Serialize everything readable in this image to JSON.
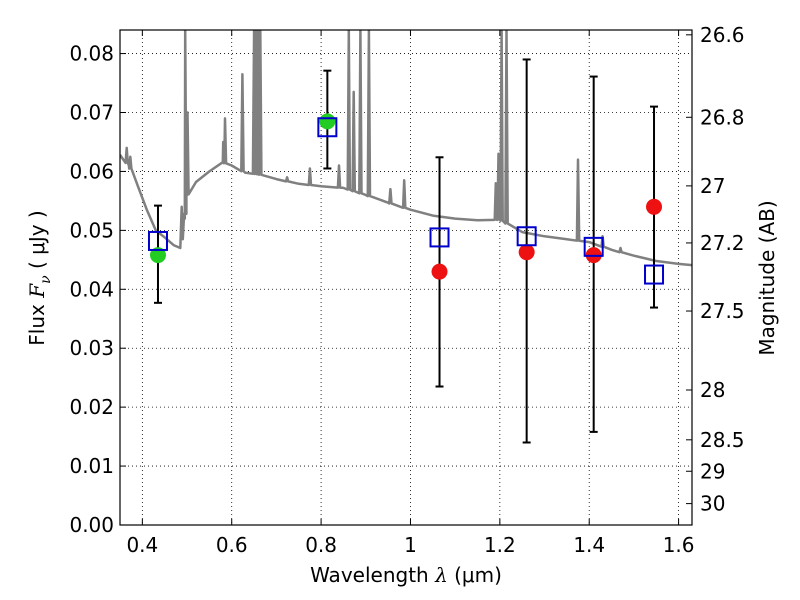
{
  "chart_data": {
    "type": "scatter",
    "title": "",
    "xlabel": {
      "prefix": "Wavelength  ",
      "symbol": "λ",
      "units": " (μm)"
    },
    "ylabel": {
      "prefix": "Flux  ",
      "symbol": "F",
      "sub": "ν",
      "units": "  ( μJy )"
    },
    "y2label": "Magnitude (AB)",
    "xlim": [
      0.35,
      1.63
    ],
    "ylim": [
      0.0,
      0.084
    ],
    "grid": true,
    "x_ticks": [
      0.4,
      0.6,
      0.8,
      1.0,
      1.2,
      1.4,
      1.6
    ],
    "x_tick_labels": [
      "0.4",
      "0.6",
      "0.8",
      "1",
      "1.2",
      "1.4",
      "1.6"
    ],
    "y_ticks": [
      0.0,
      0.01,
      0.02,
      0.03,
      0.04,
      0.05,
      0.06,
      0.07,
      0.08
    ],
    "y_tick_labels": [
      "0.00",
      "0.01",
      "0.02",
      "0.03",
      "0.04",
      "0.05",
      "0.06",
      "0.07",
      "0.08"
    ],
    "mag_ticks": [
      26.6,
      26.8,
      27,
      27.2,
      27.5,
      28,
      28.5,
      29,
      30
    ],
    "mag_tick_labels": [
      "26.6",
      "26.8",
      "27",
      "27.2",
      "27.5",
      "28",
      "28.5",
      "29",
      "30"
    ],
    "series": [
      {
        "kind": "observed-detection",
        "color": "#22cc22",
        "points": [
          {
            "x": 0.435,
            "y": 0.0458,
            "yerr_low": 0.0377,
            "yerr_high": 0.0542
          },
          {
            "x": 0.814,
            "y": 0.0685,
            "yerr_low": 0.0605,
            "yerr_high": 0.0771
          }
        ]
      },
      {
        "kind": "observed-other",
        "color": "#ee1111",
        "points": [
          {
            "x": 1.065,
            "y": 0.043,
            "yerr_low": 0.0235,
            "yerr_high": 0.0624
          },
          {
            "x": 1.26,
            "y": 0.0463,
            "yerr_low": 0.014,
            "yerr_high": 0.079
          },
          {
            "x": 1.41,
            "y": 0.0458,
            "yerr_low": 0.0158,
            "yerr_high": 0.0761
          },
          {
            "x": 1.545,
            "y": 0.054,
            "yerr_low": 0.0369,
            "yerr_high": 0.071
          }
        ]
      },
      {
        "kind": "model-photometry",
        "color": "#0000cc",
        "points": [
          {
            "x": 0.435,
            "y": 0.0482
          },
          {
            "x": 0.814,
            "y": 0.0675
          },
          {
            "x": 1.065,
            "y": 0.0488
          },
          {
            "x": 1.26,
            "y": 0.049
          },
          {
            "x": 1.41,
            "y": 0.0472
          },
          {
            "x": 1.545,
            "y": 0.0425
          }
        ]
      },
      {
        "kind": "model-sed",
        "color": "#808080",
        "continuum": [
          [
            0.35,
            0.0628
          ],
          [
            0.37,
            0.061
          ],
          [
            0.39,
            0.0575
          ],
          [
            0.41,
            0.0535
          ],
          [
            0.43,
            0.05
          ],
          [
            0.45,
            0.0488
          ],
          [
            0.47,
            0.0475
          ],
          [
            0.485,
            0.047
          ],
          [
            0.495,
            0.052
          ],
          [
            0.5,
            0.056
          ],
          [
            0.52,
            0.0582
          ],
          [
            0.55,
            0.06
          ],
          [
            0.58,
            0.0615
          ],
          [
            0.6,
            0.061
          ],
          [
            0.63,
            0.0598
          ],
          [
            0.66,
            0.0595
          ],
          [
            0.7,
            0.0587
          ],
          [
            0.75,
            0.0579
          ],
          [
            0.8,
            0.0575
          ],
          [
            0.85,
            0.0572
          ],
          [
            0.9,
            0.056
          ],
          [
            0.95,
            0.0547
          ],
          [
            1.0,
            0.0535
          ],
          [
            1.05,
            0.0525
          ],
          [
            1.1,
            0.052
          ],
          [
            1.15,
            0.0517
          ],
          [
            1.2,
            0.0518
          ],
          [
            1.25,
            0.0497
          ],
          [
            1.3,
            0.049
          ],
          [
            1.35,
            0.0485
          ],
          [
            1.4,
            0.048
          ],
          [
            1.45,
            0.0467
          ],
          [
            1.5,
            0.0457
          ],
          [
            1.55,
            0.0448
          ],
          [
            1.6,
            0.0443
          ],
          [
            1.63,
            0.0441
          ]
        ],
        "lines": [
          [
            0.365,
            0.064
          ],
          [
            0.373,
            0.0625
          ],
          [
            0.488,
            0.054
          ],
          [
            0.496,
            0.084
          ],
          [
            0.501,
            0.07
          ],
          [
            0.581,
            0.065
          ],
          [
            0.585,
            0.069
          ],
          [
            0.624,
            0.0765
          ],
          [
            0.65,
            0.084
          ],
          [
            0.654,
            0.084
          ],
          [
            0.659,
            0.084
          ],
          [
            0.664,
            0.084
          ],
          [
            0.724,
            0.059
          ],
          [
            0.775,
            0.0605
          ],
          [
            0.84,
            0.061
          ],
          [
            0.862,
            0.084
          ],
          [
            0.873,
            0.0735
          ],
          [
            0.888,
            0.084
          ],
          [
            0.907,
            0.084
          ],
          [
            0.955,
            0.057
          ],
          [
            0.986,
            0.0585
          ],
          [
            1.191,
            0.058
          ],
          [
            1.197,
            0.063
          ],
          [
            1.204,
            0.084
          ],
          [
            1.215,
            0.084
          ],
          [
            1.375,
            0.062
          ],
          [
            1.43,
            0.049
          ],
          [
            1.47,
            0.047
          ]
        ]
      }
    ]
  }
}
